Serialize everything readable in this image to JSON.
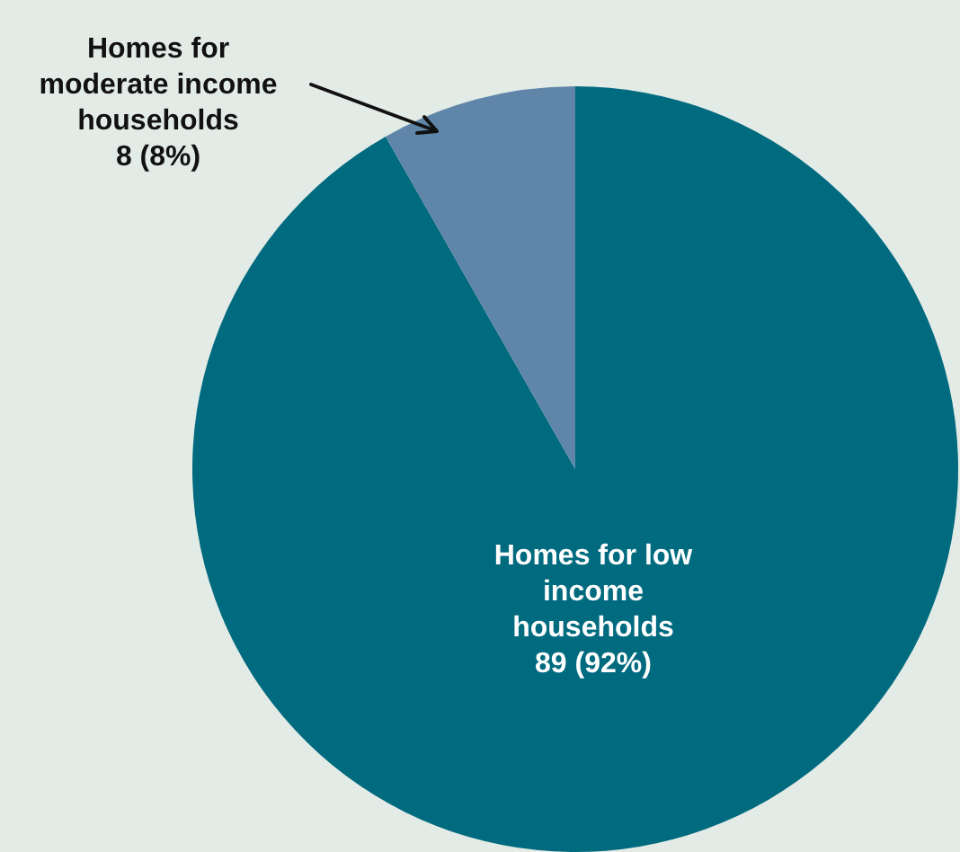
{
  "chart_data": {
    "type": "pie",
    "categories": [
      "Homes for low income households",
      "Homes for moderate income households"
    ],
    "values": [
      89,
      8
    ],
    "colors": [
      "#006a7f",
      "#5f86a8"
    ],
    "value_labels": [
      "89 (92%)",
      "8 (8%)"
    ],
    "legend": false
  }
}
